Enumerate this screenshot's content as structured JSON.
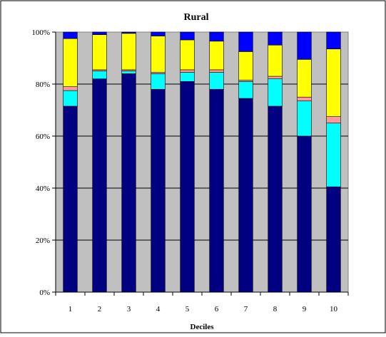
{
  "chart_data": {
    "type": "bar",
    "stacked": true,
    "normalized": true,
    "title": "Rural",
    "xlabel": "Deciles",
    "ylabel": "",
    "ylim": [
      0,
      100
    ],
    "yticks": [
      "0%",
      "20%",
      "40%",
      "60%",
      "80%",
      "100%"
    ],
    "categories": [
      "1",
      "2",
      "3",
      "4",
      "5",
      "6",
      "7",
      "8",
      "9",
      "10"
    ],
    "grid": true,
    "legend": "none",
    "plot_background": "#c0c0c0",
    "series": [
      {
        "color": "#000080",
        "values": [
          71.5,
          82,
          84,
          78,
          81,
          78,
          74.5,
          71.5,
          60,
          40.5
        ]
      },
      {
        "color": "#00ffff",
        "values": [
          6,
          3,
          1,
          6,
          3.5,
          6.5,
          6.5,
          10.5,
          13.5,
          24.5
        ]
      },
      {
        "color": "#ff9999",
        "values": [
          1.5,
          0.5,
          0.5,
          0.5,
          1,
          1,
          0.5,
          1,
          1.5,
          2.5
        ]
      },
      {
        "color": "#ffff00",
        "values": [
          18.5,
          13.5,
          14,
          14,
          11.5,
          11,
          11,
          12,
          14.5,
          26
        ]
      },
      {
        "color": "#0000ff",
        "values": [
          2.5,
          1,
          0.5,
          1.5,
          3,
          3.5,
          7.5,
          5,
          10.5,
          6.5
        ]
      }
    ]
  }
}
